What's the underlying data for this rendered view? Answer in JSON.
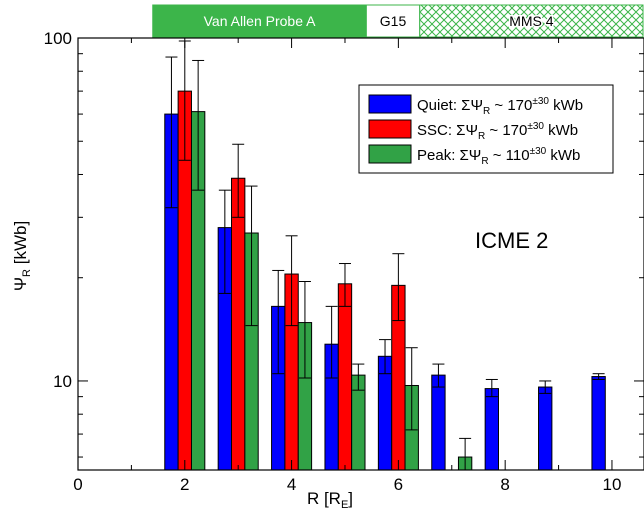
{
  "chart_data": {
    "type": "bar",
    "annotation": "ICME 2",
    "xlabel": {
      "main": "R  [R",
      "sub": "E",
      "close": "]"
    },
    "ylabel": {
      "main": "Ψ",
      "sub": "R",
      "unit": " [kWb]"
    },
    "xlim": [
      0,
      10.6
    ],
    "ylim": [
      5.5,
      100
    ],
    "yscale": "log",
    "grid": false,
    "legend_position": "top-right",
    "x_ticks": [
      0,
      2,
      4,
      6,
      8,
      10
    ],
    "y_ticks": [
      10,
      100
    ],
    "missions": [
      {
        "label": "Van Allen Probe A",
        "from": 1.4,
        "to": 5.4,
        "fill": "#3cb54a",
        "text_color": "#ffffff",
        "hatched": false
      },
      {
        "label": "G15",
        "from": 5.4,
        "to": 6.4,
        "fill": "#ffffff",
        "text_color": "#000000",
        "hatched": false
      },
      {
        "label": "MMS 4",
        "from": 6.4,
        "to": 10.6,
        "fill": "#ffffff",
        "text_color": "#000000",
        "hatched": true,
        "hatch_color": "#3cb54a"
      }
    ],
    "series": [
      {
        "name": "Quiet",
        "legend": {
          "prefix": "Quiet: ΣΨ",
          "sub": "R",
          "mid": " ~ 170",
          "sup": "±30",
          "suffix": " kWb"
        },
        "color": "#0000ff",
        "x": [
          1.75,
          2.75,
          3.75,
          4.75,
          5.75,
          6.75,
          7.75,
          8.75,
          9.75
        ],
        "values": [
          60,
          28,
          16.5,
          12.8,
          11.8,
          10.4,
          9.5,
          9.6,
          10.3
        ],
        "err_low": [
          32,
          18,
          10.5,
          10.2,
          10.5,
          9.6,
          9.0,
          9.2,
          10.1
        ],
        "err_high": [
          88,
          36,
          21,
          16.5,
          13.2,
          11.2,
          10.1,
          10.0,
          10.5
        ]
      },
      {
        "name": "SSC",
        "legend": {
          "prefix": "SSC: ΣΨ",
          "sub": "R",
          "mid": " ~ 170",
          "sup": "±30",
          "suffix": " kWb"
        },
        "color": "#ff0000",
        "x": [
          2.0,
          3.0,
          4.0,
          5.0,
          6.0
        ],
        "values": [
          70,
          39,
          20.5,
          19.2,
          19.0
        ],
        "err_low": [
          44,
          30,
          14.5,
          16.5,
          15.0
        ],
        "err_high": [
          98,
          49,
          26.5,
          22,
          23.5
        ]
      },
      {
        "name": "Peak",
        "legend": {
          "prefix": "Peak: ΣΨ",
          "sub": "R",
          "mid": " ~ 110",
          "sup": "±30",
          "suffix": " kWb"
        },
        "color": "#31a246",
        "x": [
          2.25,
          3.25,
          4.25,
          5.25,
          6.25,
          7.25
        ],
        "values": [
          61,
          27,
          14.8,
          10.4,
          9.7,
          6.0
        ],
        "err_low": [
          36,
          14.5,
          10.2,
          9.4,
          7.2,
          5.5
        ],
        "err_high": [
          86,
          37,
          19.5,
          11.2,
          12.5,
          6.8
        ]
      }
    ]
  }
}
